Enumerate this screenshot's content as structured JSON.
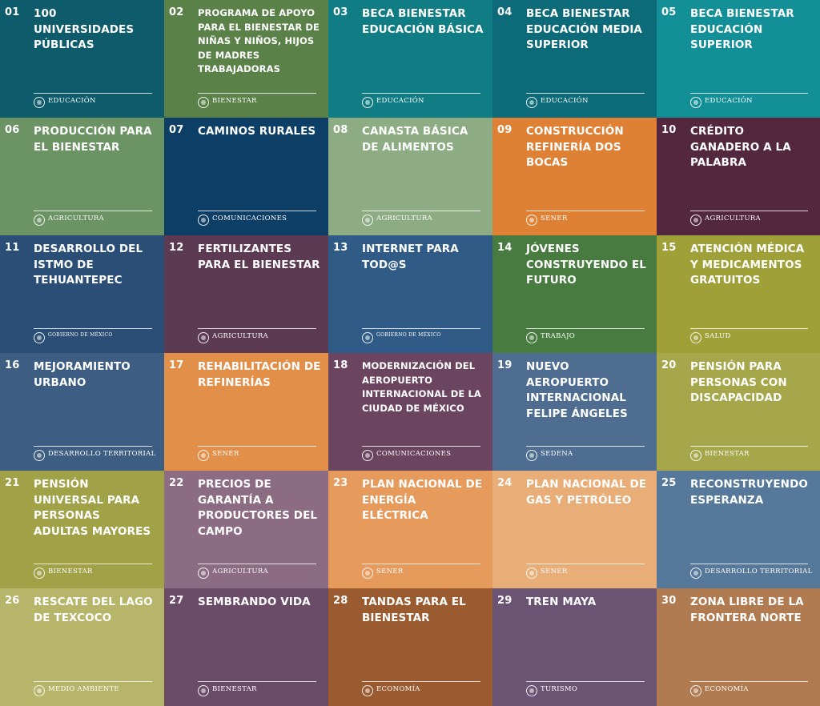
{
  "programs": [
    {
      "number": "01",
      "title": "100 UNIVERSIDADES PÚBLICAS",
      "department": "EDUCACIÓN",
      "color": "#0E5B6C"
    },
    {
      "number": "02",
      "title": "PROGRAMA DE APOYO PARA EL BIENESTAR DE NIÑAS Y NIÑOS, HIJOS DE MADRES TRABAJADORAS",
      "department": "BIENESTAR",
      "color": "#5A8148"
    },
    {
      "number": "03",
      "title": "BECA BIENESTAR EDUCACIÓN BÁSICA",
      "department": "EDUCACIÓN",
      "color": "#107C83"
    },
    {
      "number": "04",
      "title": "BECA BIENESTAR EDUCACIÓN MEDIA SUPERIOR",
      "department": "EDUCACIÓN",
      "color": "#0D6A78"
    },
    {
      "number": "05",
      "title": "BECA BIENESTAR EDUCACIÓN SUPERIOR",
      "department": "EDUCACIÓN",
      "color": "#138F98"
    },
    {
      "number": "06",
      "title": "PRODUCCIÓN PARA EL BIENESTAR",
      "department": "AGRICULTURA",
      "color": "#6B9364"
    },
    {
      "number": "07",
      "title": "CAMINOS RURALES",
      "department": "COMUNICACIONES",
      "color": "#0D3F66"
    },
    {
      "number": "08",
      "title": "CANASTA BÁSICA DE ALIMENTOS",
      "department": "AGRICULTURA",
      "color": "#8DAC84"
    },
    {
      "number": "09",
      "title": "CONSTRUCCIÓN REFINERÍA DOS BOCAS",
      "department": "SENER",
      "color": "#DE8135"
    },
    {
      "number": "10",
      "title": "CRÉDITO GANADERO A LA PALABRA",
      "department": "AGRICULTURA",
      "color": "#53283F"
    },
    {
      "number": "11",
      "title": "DESARROLLO DEL ISTMO DE TEHUANTEPEC",
      "department": "GOBIERNO DE MÉXICO",
      "color": "#2A4E75"
    },
    {
      "number": "12",
      "title": "FERTILIZANTES PARA EL BIENESTAR",
      "department": "AGRICULTURA",
      "color": "#5B3A52"
    },
    {
      "number": "13",
      "title": "INTERNET PARA TOD@S",
      "department": "GOBIERNO DE MÉXICO",
      "color": "#2F5B86"
    },
    {
      "number": "14",
      "title": "JÓVENES CONSTRUYENDO EL FUTURO",
      "department": "TRABAJO",
      "color": "#487B40"
    },
    {
      "number": "15",
      "title": "ATENCIÓN MÉDICA Y MEDICAMENTOS GRATUITOS",
      "department": "SALUD",
      "color": "#A0A039"
    },
    {
      "number": "16",
      "title": "MEJORAMIENTO URBANO",
      "department": "DESARROLLO TERRITORIAL",
      "color": "#3D5D82"
    },
    {
      "number": "17",
      "title": "REHABILITACIÓN DE REFINERÍAS",
      "department": "SENER",
      "color": "#E28F49"
    },
    {
      "number": "18",
      "title": "MODERNIZACIÓN DEL AEROPUERTO INTERNACIONAL DE LA CIUDAD DE MÉXICO",
      "department": "COMUNICACIONES",
      "color": "#6B4460"
    },
    {
      "number": "19",
      "title": "NUEVO AEROPUERTO INTERNACIONAL FELIPE ÁNGELES",
      "department": "SEDENA",
      "color": "#4F6D91"
    },
    {
      "number": "20",
      "title": "PENSIÓN PARA PERSONAS CON DISCAPACIDAD",
      "department": "BIENESTAR",
      "color": "#A6A74A"
    },
    {
      "number": "21",
      "title": "PENSIÓN UNIVERSAL PARA PERSONAS ADULTAS MAYORES",
      "department": "BIENESTAR",
      "color": "#A1A148"
    },
    {
      "number": "22",
      "title": "PRECIOS DE GARANTÍA A PRODUCTORES DEL CAMPO",
      "department": "AGRICULTURA",
      "color": "#8C6C82"
    },
    {
      "number": "23",
      "title": "PLAN NACIONAL DE ENERGÍA ELÉCTRICA",
      "department": "SENER",
      "color": "#E69A5B"
    },
    {
      "number": "24",
      "title": "PLAN NACIONAL DE GAS Y PETRÓLEO",
      "department": "SENER",
      "color": "#E9AD77"
    },
    {
      "number": "25",
      "title": "RECONSTRUYENDO ESPERANZA",
      "department": "DESARROLLO TERRITORIAL",
      "color": "#56789A"
    },
    {
      "number": "26",
      "title": "RESCATE DEL LAGO DE TEXCOCO",
      "department": "MEDIO AMBIENTE",
      "color": "#B6B569"
    },
    {
      "number": "27",
      "title": "SEMBRANDO VIDA",
      "department": "BIENESTAR",
      "color": "#6B4C68"
    },
    {
      "number": "28",
      "title": "TANDAS PARA EL BIENESTAR",
      "department": "ECONOMÍA",
      "color": "#9A5B30"
    },
    {
      "number": "29",
      "title": "TREN MAYA",
      "department": "TURISMO",
      "color": "#6B5473"
    },
    {
      "number": "30",
      "title": "ZONA LIBRE DE LA FRONTERA NORTE",
      "department": "ECONOMÍA",
      "color": "#B07B50"
    }
  ]
}
